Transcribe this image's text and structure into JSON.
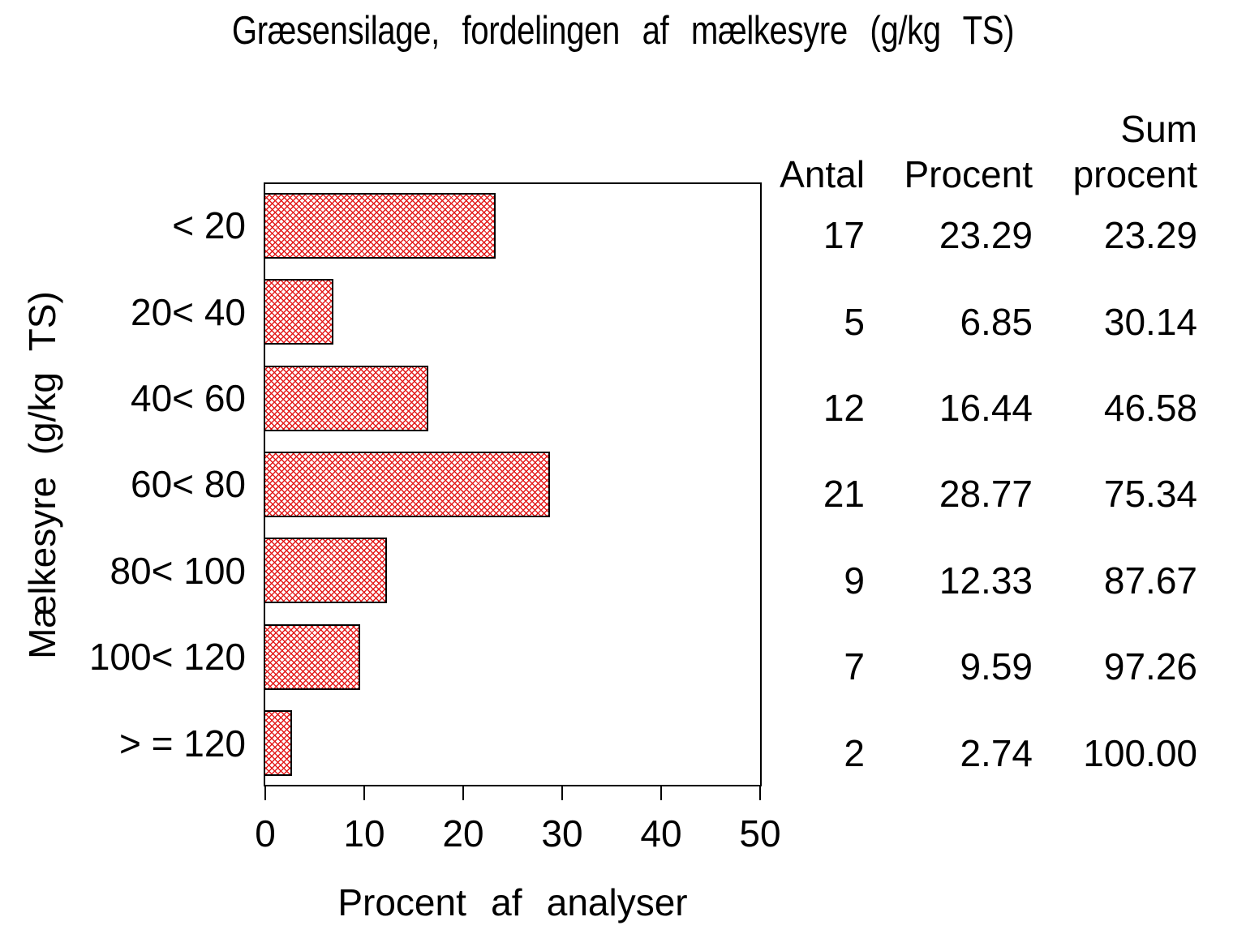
{
  "colors": {
    "background": "#ffffff",
    "text": "#000000",
    "frame": "#000000",
    "hatch_red": "#e31b1b"
  },
  "chart_data": {
    "type": "bar",
    "orientation": "horizontal",
    "title": "Græsensilage, fordelingen af mælkesyre (g/kg TS)",
    "xlabel": "Procent af analyser",
    "ylabel": "Mælkesyre (g/kg TS)",
    "categories": [
      "< 20",
      "20< 40",
      "40< 60",
      "60< 80",
      "80< 100",
      "100< 120",
      "> = 120"
    ],
    "series": [
      {
        "name": "Antal",
        "values": [
          17,
          5,
          12,
          21,
          9,
          7,
          2
        ]
      },
      {
        "name": "Procent",
        "values": [
          23.29,
          6.85,
          16.44,
          28.77,
          12.33,
          9.59,
          2.74
        ]
      },
      {
        "name": "Sum procent",
        "values": [
          23.29,
          30.14,
          46.58,
          75.34,
          87.67,
          97.26,
          100.0
        ]
      }
    ],
    "bar_series": "Procent",
    "xlim": [
      0,
      50
    ],
    "xticks": [
      0,
      10,
      20,
      30,
      40,
      50
    ],
    "grid": false,
    "legend": false,
    "bar_style": "red diagonal crosshatch fill with black outline"
  },
  "table": {
    "headers": {
      "antal": "Antal",
      "procent": "Procent",
      "sum_line1": "Sum",
      "sum_line2": "procent"
    },
    "rows": [
      {
        "antal": "17",
        "procent": "23.29",
        "sum": "23.29"
      },
      {
        "antal": "5",
        "procent": "6.85",
        "sum": "30.14"
      },
      {
        "antal": "12",
        "procent": "16.44",
        "sum": "46.58"
      },
      {
        "antal": "21",
        "procent": "28.77",
        "sum": "75.34"
      },
      {
        "antal": "9",
        "procent": "12.33",
        "sum": "87.67"
      },
      {
        "antal": "7",
        "procent": "9.59",
        "sum": "97.26"
      },
      {
        "antal": "2",
        "procent": "2.74",
        "sum": "100.00"
      }
    ]
  }
}
